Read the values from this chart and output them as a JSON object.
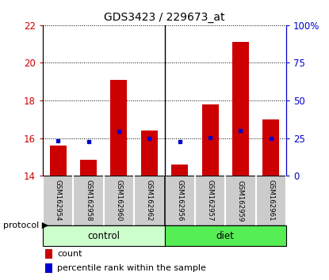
{
  "title": "GDS3423 / 229673_at",
  "samples": [
    "GSM162954",
    "GSM162958",
    "GSM162960",
    "GSM162962",
    "GSM162956",
    "GSM162957",
    "GSM162959",
    "GSM162961"
  ],
  "groups": [
    "control",
    "control",
    "control",
    "control",
    "diet",
    "diet",
    "diet",
    "diet"
  ],
  "counts": [
    15.6,
    14.85,
    19.1,
    16.4,
    14.6,
    17.8,
    21.1,
    17.0
  ],
  "percentile_ranks": [
    15.85,
    15.82,
    16.35,
    16.0,
    15.82,
    16.02,
    16.38,
    16.0
  ],
  "ylim_left": [
    14,
    22
  ],
  "ylim_right": [
    0,
    100
  ],
  "yticks_left": [
    14,
    16,
    18,
    20,
    22
  ],
  "yticks_right": [
    0,
    25,
    50,
    75,
    100
  ],
  "bar_color": "#cc0000",
  "dot_color": "#0000cc",
  "control_color": "#ccffcc",
  "diet_color": "#55ee55",
  "sample_bg_color": "#cccccc",
  "left_tick_color": "#cc0000",
  "right_tick_color": "#0000cc",
  "n_control": 4,
  "n_diet": 4,
  "bar_width": 0.55
}
